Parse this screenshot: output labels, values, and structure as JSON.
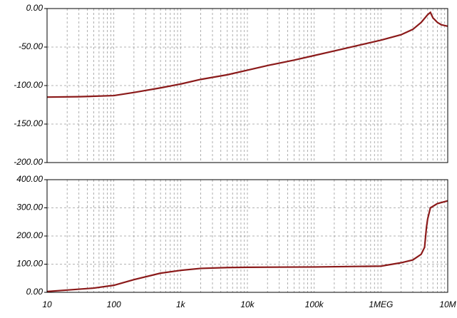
{
  "chart_data": [
    {
      "type": "line",
      "xscale": "log",
      "grid": true,
      "xlim": [
        10,
        10000000
      ],
      "ylim": [
        -200,
        0
      ],
      "yticks": [
        {
          "value": -200,
          "label": "-200.00"
        },
        {
          "value": -150,
          "label": "-150.00"
        },
        {
          "value": -100,
          "label": "-100.00"
        },
        {
          "value": -50,
          "label": "-50.00"
        },
        {
          "value": 0,
          "label": "0.00"
        }
      ],
      "x": [
        10,
        30,
        100,
        200,
        500,
        1000,
        2000,
        5000,
        10000,
        20000,
        50000,
        100000,
        200000,
        500000,
        1000000,
        2000000,
        3000000,
        4000000,
        5000000,
        5500000,
        6000000,
        7000000,
        8000000,
        10000000
      ],
      "series": [
        {
          "color": "#8b1a1a",
          "values": [
            -115,
            -114.5,
            -113,
            -109,
            -103,
            -98,
            -92,
            -86,
            -80,
            -74,
            -67,
            -61,
            -55,
            -47,
            -41,
            -34,
            -27,
            -18,
            -8,
            -5,
            -12,
            -18,
            -21,
            -23
          ]
        }
      ]
    },
    {
      "type": "line",
      "xscale": "log",
      "grid": true,
      "xlim": [
        10,
        10000000
      ],
      "ylim": [
        0,
        400
      ],
      "yticks": [
        {
          "value": 0,
          "label": "0.00"
        },
        {
          "value": 100,
          "label": "100.00"
        },
        {
          "value": 200,
          "label": "200.00"
        },
        {
          "value": 300,
          "label": "300.00"
        },
        {
          "value": 400,
          "label": "400.00"
        }
      ],
      "xticks": [
        10,
        100,
        {
          "value": 1000,
          "label": "1k"
        },
        {
          "value": 10000,
          "label": "10k"
        },
        {
          "value": 100000,
          "label": "100k"
        },
        {
          "value": 1000000,
          "label": "1MEG"
        },
        {
          "value": 10000000,
          "label": "10M"
        }
      ],
      "x": [
        10,
        20,
        50,
        100,
        200,
        500,
        1000,
        2000,
        5000,
        10000,
        100000,
        1000000,
        2000000,
        3000000,
        4000000,
        4500000,
        4800000,
        5000000,
        5500000,
        7000000,
        10000000
      ],
      "series": [
        {
          "color": "#8b1a1a",
          "values": [
            3,
            8,
            15,
            25,
            45,
            68,
            78,
            85,
            88,
            89,
            90,
            93,
            105,
            115,
            135,
            160,
            230,
            260,
            300,
            315,
            325
          ]
        }
      ]
    }
  ]
}
